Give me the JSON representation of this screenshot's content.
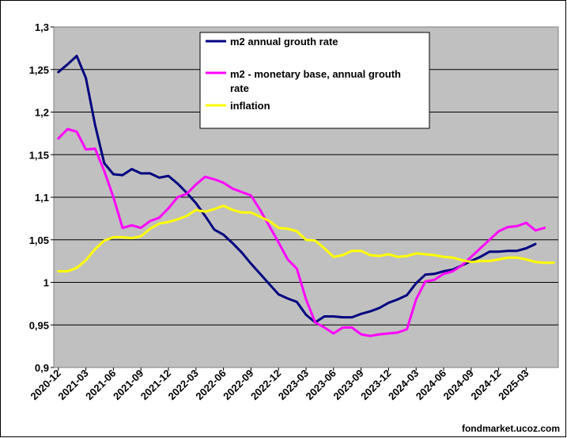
{
  "chart_data": {
    "type": "line",
    "ylim": [
      0.9,
      1.3
    ],
    "yticks": [
      0.9,
      0.95,
      1.0,
      1.05,
      1.1,
      1.15,
      1.2,
      1.25,
      1.3
    ],
    "ytick_labels": [
      "0,9",
      "0,95",
      "1",
      "1,05",
      "1,1",
      "1,15",
      "1,2",
      "1,25",
      "1,3"
    ],
    "x_labels": [
      "2020-12",
      "2021-03",
      "2021-06",
      "2021-09",
      "2021-12",
      "2022-03",
      "2022-06",
      "2022-09",
      "2022-12",
      "2023-03",
      "2023-06",
      "2023-09",
      "2023-12",
      "2024-03",
      "2024-06",
      "2024-09",
      "2024-12",
      "2025-03"
    ],
    "x_start": "2020-12",
    "n_points": 55,
    "grid": true,
    "legend_position": "top-center",
    "plot_background": "#c0c0c0",
    "series": [
      {
        "name": "m2 annual grouth rate",
        "color": "#000080",
        "points": [
          [
            0,
            1.247
          ],
          [
            1,
            1.256
          ],
          [
            2,
            1.266
          ],
          [
            3,
            1.24
          ],
          [
            4,
            1.185
          ],
          [
            5,
            1.14
          ],
          [
            6,
            1.127
          ],
          [
            7,
            1.126
          ],
          [
            8,
            1.133
          ],
          [
            9,
            1.128
          ],
          [
            10,
            1.128
          ],
          [
            11,
            1.123
          ],
          [
            12,
            1.125
          ],
          [
            13,
            1.116
          ],
          [
            14,
            1.105
          ],
          [
            15,
            1.093
          ],
          [
            16,
            1.078
          ],
          [
            17,
            1.062
          ],
          [
            18,
            1.056
          ],
          [
            19,
            1.046
          ],
          [
            20,
            1.035
          ],
          [
            21,
            1.022
          ],
          [
            22,
            1.01
          ],
          [
            23,
            0.998
          ],
          [
            24,
            0.986
          ],
          [
            25,
            0.981
          ],
          [
            26,
            0.977
          ],
          [
            27,
            0.962
          ],
          [
            28,
            0.953
          ],
          [
            29,
            0.96
          ],
          [
            30,
            0.96
          ],
          [
            31,
            0.959
          ],
          [
            32,
            0.959
          ],
          [
            33,
            0.963
          ],
          [
            34,
            0.966
          ],
          [
            35,
            0.97
          ],
          [
            36,
            0.976
          ],
          [
            37,
            0.98
          ],
          [
            38,
            0.985
          ],
          [
            39,
            0.999
          ],
          [
            40,
            1.009
          ],
          [
            41,
            1.01
          ],
          [
            42,
            1.013
          ],
          [
            43,
            1.015
          ],
          [
            44,
            1.02
          ],
          [
            45,
            1.025
          ],
          [
            46,
            1.03
          ],
          [
            47,
            1.036
          ],
          [
            48,
            1.036
          ],
          [
            49,
            1.037
          ],
          [
            50,
            1.037
          ],
          [
            51,
            1.04
          ],
          [
            52,
            1.045
          ]
        ]
      },
      {
        "name": "m2 - monetary base,  annual grouth rate",
        "color": "#ff00ff",
        "points": [
          [
            0,
            1.169
          ],
          [
            1,
            1.18
          ],
          [
            2,
            1.177
          ],
          [
            3,
            1.156
          ],
          [
            4,
            1.157
          ],
          [
            5,
            1.131
          ],
          [
            6,
            1.1
          ],
          [
            7,
            1.064
          ],
          [
            8,
            1.067
          ],
          [
            9,
            1.064
          ],
          [
            10,
            1.072
          ],
          [
            11,
            1.076
          ],
          [
            12,
            1.087
          ],
          [
            13,
            1.1
          ],
          [
            14,
            1.104
          ],
          [
            15,
            1.115
          ],
          [
            16,
            1.124
          ],
          [
            17,
            1.121
          ],
          [
            18,
            1.117
          ],
          [
            19,
            1.11
          ],
          [
            20,
            1.106
          ],
          [
            21,
            1.102
          ],
          [
            22,
            1.085
          ],
          [
            23,
            1.066
          ],
          [
            24,
            1.047
          ],
          [
            25,
            1.027
          ],
          [
            26,
            1.016
          ],
          [
            27,
            0.98
          ],
          [
            28,
            0.953
          ],
          [
            29,
            0.947
          ],
          [
            30,
            0.94
          ],
          [
            31,
            0.947
          ],
          [
            32,
            0.947
          ],
          [
            33,
            0.939
          ],
          [
            34,
            0.937
          ],
          [
            35,
            0.939
          ],
          [
            36,
            0.94
          ],
          [
            37,
            0.941
          ],
          [
            38,
            0.945
          ],
          [
            39,
            0.98
          ],
          [
            40,
            1.001
          ],
          [
            41,
            1.003
          ],
          [
            42,
            1.01
          ],
          [
            43,
            1.013
          ],
          [
            44,
            1.02
          ],
          [
            45,
            1.03
          ],
          [
            46,
            1.04
          ],
          [
            47,
            1.05
          ],
          [
            48,
            1.06
          ],
          [
            49,
            1.065
          ],
          [
            50,
            1.066
          ],
          [
            51,
            1.07
          ],
          [
            52,
            1.061
          ],
          [
            53,
            1.064
          ]
        ]
      },
      {
        "name": "inflation",
        "color": "#ffff00",
        "points": [
          [
            0,
            1.013
          ],
          [
            1,
            1.013
          ],
          [
            2,
            1.017
          ],
          [
            3,
            1.026
          ],
          [
            4,
            1.039
          ],
          [
            5,
            1.049
          ],
          [
            6,
            1.053
          ],
          [
            7,
            1.053
          ],
          [
            8,
            1.052
          ],
          [
            9,
            1.054
          ],
          [
            10,
            1.063
          ],
          [
            11,
            1.069
          ],
          [
            12,
            1.071
          ],
          [
            13,
            1.074
          ],
          [
            14,
            1.078
          ],
          [
            15,
            1.085
          ],
          [
            16,
            1.083
          ],
          [
            17,
            1.086
          ],
          [
            18,
            1.09
          ],
          [
            19,
            1.085
          ],
          [
            20,
            1.082
          ],
          [
            21,
            1.082
          ],
          [
            22,
            1.077
          ],
          [
            23,
            1.072
          ],
          [
            24,
            1.064
          ],
          [
            25,
            1.063
          ],
          [
            26,
            1.06
          ],
          [
            27,
            1.05
          ],
          [
            28,
            1.049
          ],
          [
            29,
            1.04
          ],
          [
            30,
            1.03
          ],
          [
            31,
            1.032
          ],
          [
            32,
            1.037
          ],
          [
            33,
            1.037
          ],
          [
            34,
            1.032
          ],
          [
            35,
            1.031
          ],
          [
            36,
            1.033
          ],
          [
            37,
            1.03
          ],
          [
            38,
            1.031
          ],
          [
            39,
            1.034
          ],
          [
            40,
            1.033
          ],
          [
            41,
            1.032
          ],
          [
            42,
            1.03
          ],
          [
            43,
            1.029
          ],
          [
            44,
            1.026
          ],
          [
            45,
            1.024
          ],
          [
            46,
            1.025
          ],
          [
            47,
            1.025
          ],
          [
            48,
            1.027
          ],
          [
            49,
            1.029
          ],
          [
            50,
            1.029
          ],
          [
            51,
            1.027
          ],
          [
            52,
            1.024
          ],
          [
            53,
            1.023
          ],
          [
            54,
            1.023
          ]
        ]
      }
    ]
  },
  "watermark": "fondmarket.ucoz.com"
}
